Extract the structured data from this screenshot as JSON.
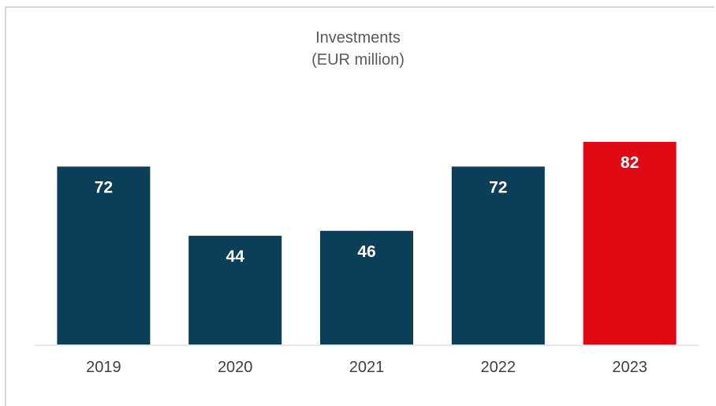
{
  "chart_data": {
    "type": "bar",
    "title": "Investments",
    "subtitle": "(EUR million)",
    "categories": [
      "2019",
      "2020",
      "2021",
      "2022",
      "2023"
    ],
    "values": [
      72,
      44,
      46,
      72,
      82
    ],
    "ylim": [
      0,
      82
    ],
    "grid": false,
    "legend": "none",
    "colors": [
      "#0b3f57",
      "#0b3f57",
      "#0b3f57",
      "#0b3f57",
      "#e00913"
    ],
    "label_color": "#ffffff",
    "axis_color": "#e8e8e8"
  }
}
